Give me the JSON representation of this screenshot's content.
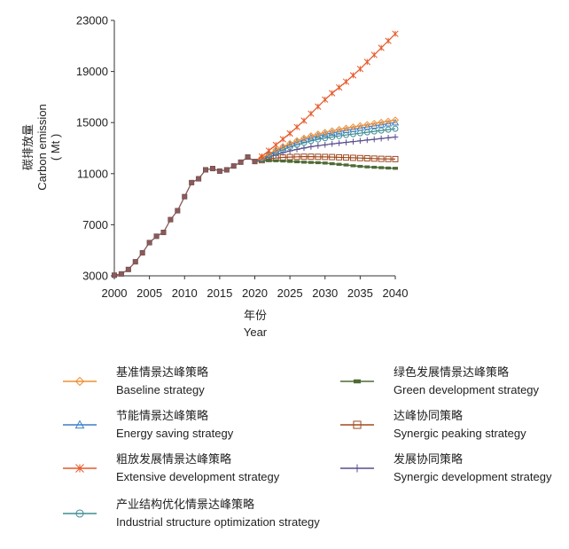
{
  "chart_data": {
    "type": "line",
    "title": "",
    "ylabel_cn": "碳排放量",
    "ylabel_en": "Carbon emission",
    "ylabel_unit": "( Mt )",
    "xlabel_cn": "年份",
    "xlabel_en": "Year",
    "xlim": [
      2000,
      2040
    ],
    "ylim": [
      3000,
      23000
    ],
    "xticks": [
      "2000",
      "2005",
      "2010",
      "2015",
      "2020",
      "2025",
      "2030",
      "2035",
      "2040"
    ],
    "yticks": [
      "3000",
      "7000",
      "11000",
      "15000",
      "19000",
      "23000"
    ],
    "legend_position": "bottom",
    "colors": {
      "baseline": "#ef8f34",
      "energy": "#3d7fc6",
      "extensive": "#e5592a",
      "industrial": "#3f8e92",
      "green": "#4e6b35",
      "synergic_peaking": "#a04a20",
      "synergic_dev": "#5a4d8c",
      "history": "#8b5a5a"
    },
    "history": {
      "x": [
        2000,
        2001,
        2002,
        2003,
        2004,
        2005,
        2006,
        2007,
        2008,
        2009,
        2010,
        2011,
        2012,
        2013,
        2014,
        2015,
        2016,
        2017,
        2018,
        2019,
        2020
      ],
      "y": [
        3050,
        3150,
        3500,
        4100,
        4800,
        5600,
        6100,
        6400,
        7400,
        8100,
        9200,
        10300,
        10600,
        11300,
        11400,
        11200,
        11300,
        11600,
        11900,
        12300,
        11950
      ]
    },
    "series": [
      {
        "key": "baseline",
        "name_cn": "基准情景达峰策略",
        "name_en": "Baseline strategy",
        "marker": "diamond",
        "x": [
          2020,
          2021,
          2022,
          2023,
          2024,
          2025,
          2026,
          2027,
          2028,
          2029,
          2030,
          2031,
          2032,
          2033,
          2034,
          2035,
          2036,
          2037,
          2038,
          2039,
          2040
        ],
        "y": [
          11950,
          12250,
          12560,
          12860,
          13120,
          13360,
          13580,
          13780,
          13960,
          14100,
          14230,
          14350,
          14460,
          14560,
          14660,
          14750,
          14840,
          14930,
          15020,
          15110,
          15200
        ]
      },
      {
        "key": "energy",
        "name_cn": "节能情景达峰策略",
        "name_en": "Energy saving strategy",
        "marker": "triangle",
        "x": [
          2020,
          2021,
          2022,
          2023,
          2024,
          2025,
          2026,
          2027,
          2028,
          2029,
          2030,
          2031,
          2032,
          2033,
          2034,
          2035,
          2036,
          2037,
          2038,
          2039,
          2040
        ],
        "y": [
          11950,
          12220,
          12500,
          12780,
          13030,
          13260,
          13460,
          13650,
          13820,
          13960,
          14080,
          14190,
          14290,
          14390,
          14480,
          14570,
          14660,
          14750,
          14830,
          14920,
          15000
        ]
      },
      {
        "key": "extensive",
        "name_cn": "粗放发展情景达峰策略",
        "name_en": "Extensive development strategy",
        "marker": "star",
        "x": [
          2020,
          2021,
          2022,
          2023,
          2024,
          2025,
          2026,
          2027,
          2028,
          2029,
          2030,
          2031,
          2032,
          2033,
          2034,
          2035,
          2036,
          2037,
          2038,
          2039,
          2040
        ],
        "y": [
          11950,
          12350,
          12800,
          13250,
          13700,
          14150,
          14650,
          15150,
          15700,
          16250,
          16800,
          17300,
          17750,
          18200,
          18700,
          19200,
          19750,
          20300,
          20850,
          21400,
          21950
        ]
      },
      {
        "key": "industrial",
        "name_cn": "产业结构优化情景达峰策略",
        "name_en": "Industrial structure optimization strategy",
        "marker": "circle",
        "x": [
          2020,
          2021,
          2022,
          2023,
          2024,
          2025,
          2026,
          2027,
          2028,
          2029,
          2030,
          2031,
          2032,
          2033,
          2034,
          2035,
          2036,
          2037,
          2038,
          2039,
          2040
        ],
        "y": [
          11950,
          12180,
          12420,
          12660,
          12880,
          13080,
          13260,
          13420,
          13560,
          13680,
          13780,
          13870,
          13950,
          14030,
          14100,
          14170,
          14240,
          14310,
          14380,
          14450,
          14520
        ]
      },
      {
        "key": "green",
        "name_cn": "绿色发展情景达峰策略",
        "name_en": "Green development strategy",
        "marker": "bar",
        "x": [
          2020,
          2021,
          2022,
          2023,
          2024,
          2025,
          2026,
          2027,
          2028,
          2029,
          2030,
          2031,
          2032,
          2033,
          2034,
          2035,
          2036,
          2037,
          2038,
          2039,
          2040
        ],
        "y": [
          11950,
          12000,
          12020,
          12010,
          11990,
          11960,
          11930,
          11900,
          11880,
          11860,
          11830,
          11780,
          11730,
          11680,
          11620,
          11570,
          11530,
          11500,
          11470,
          11440,
          11420
        ]
      },
      {
        "key": "synergic_peaking",
        "name_cn": "达峰协同策略",
        "name_en": "Synergic peaking strategy",
        "marker": "square",
        "x": [
          2020,
          2021,
          2022,
          2023,
          2024,
          2025,
          2026,
          2027,
          2028,
          2029,
          2030,
          2031,
          2032,
          2033,
          2034,
          2035,
          2036,
          2037,
          2038,
          2039,
          2040
        ],
        "y": [
          11950,
          12050,
          12150,
          12220,
          12270,
          12300,
          12320,
          12330,
          12330,
          12320,
          12310,
          12300,
          12280,
          12260,
          12240,
          12220,
          12200,
          12180,
          12160,
          12150,
          12140
        ]
      },
      {
        "key": "synergic_dev",
        "name_cn": "发展协同策略",
        "name_en": "Synergic development strategy",
        "marker": "plus",
        "x": [
          2020,
          2021,
          2022,
          2023,
          2024,
          2025,
          2026,
          2027,
          2028,
          2029,
          2030,
          2031,
          2032,
          2033,
          2034,
          2035,
          2036,
          2037,
          2038,
          2039,
          2040
        ],
        "y": [
          11950,
          12120,
          12300,
          12480,
          12640,
          12780,
          12900,
          13010,
          13110,
          13190,
          13260,
          13330,
          13390,
          13450,
          13510,
          13570,
          13630,
          13690,
          13750,
          13810,
          13870
        ]
      }
    ]
  }
}
